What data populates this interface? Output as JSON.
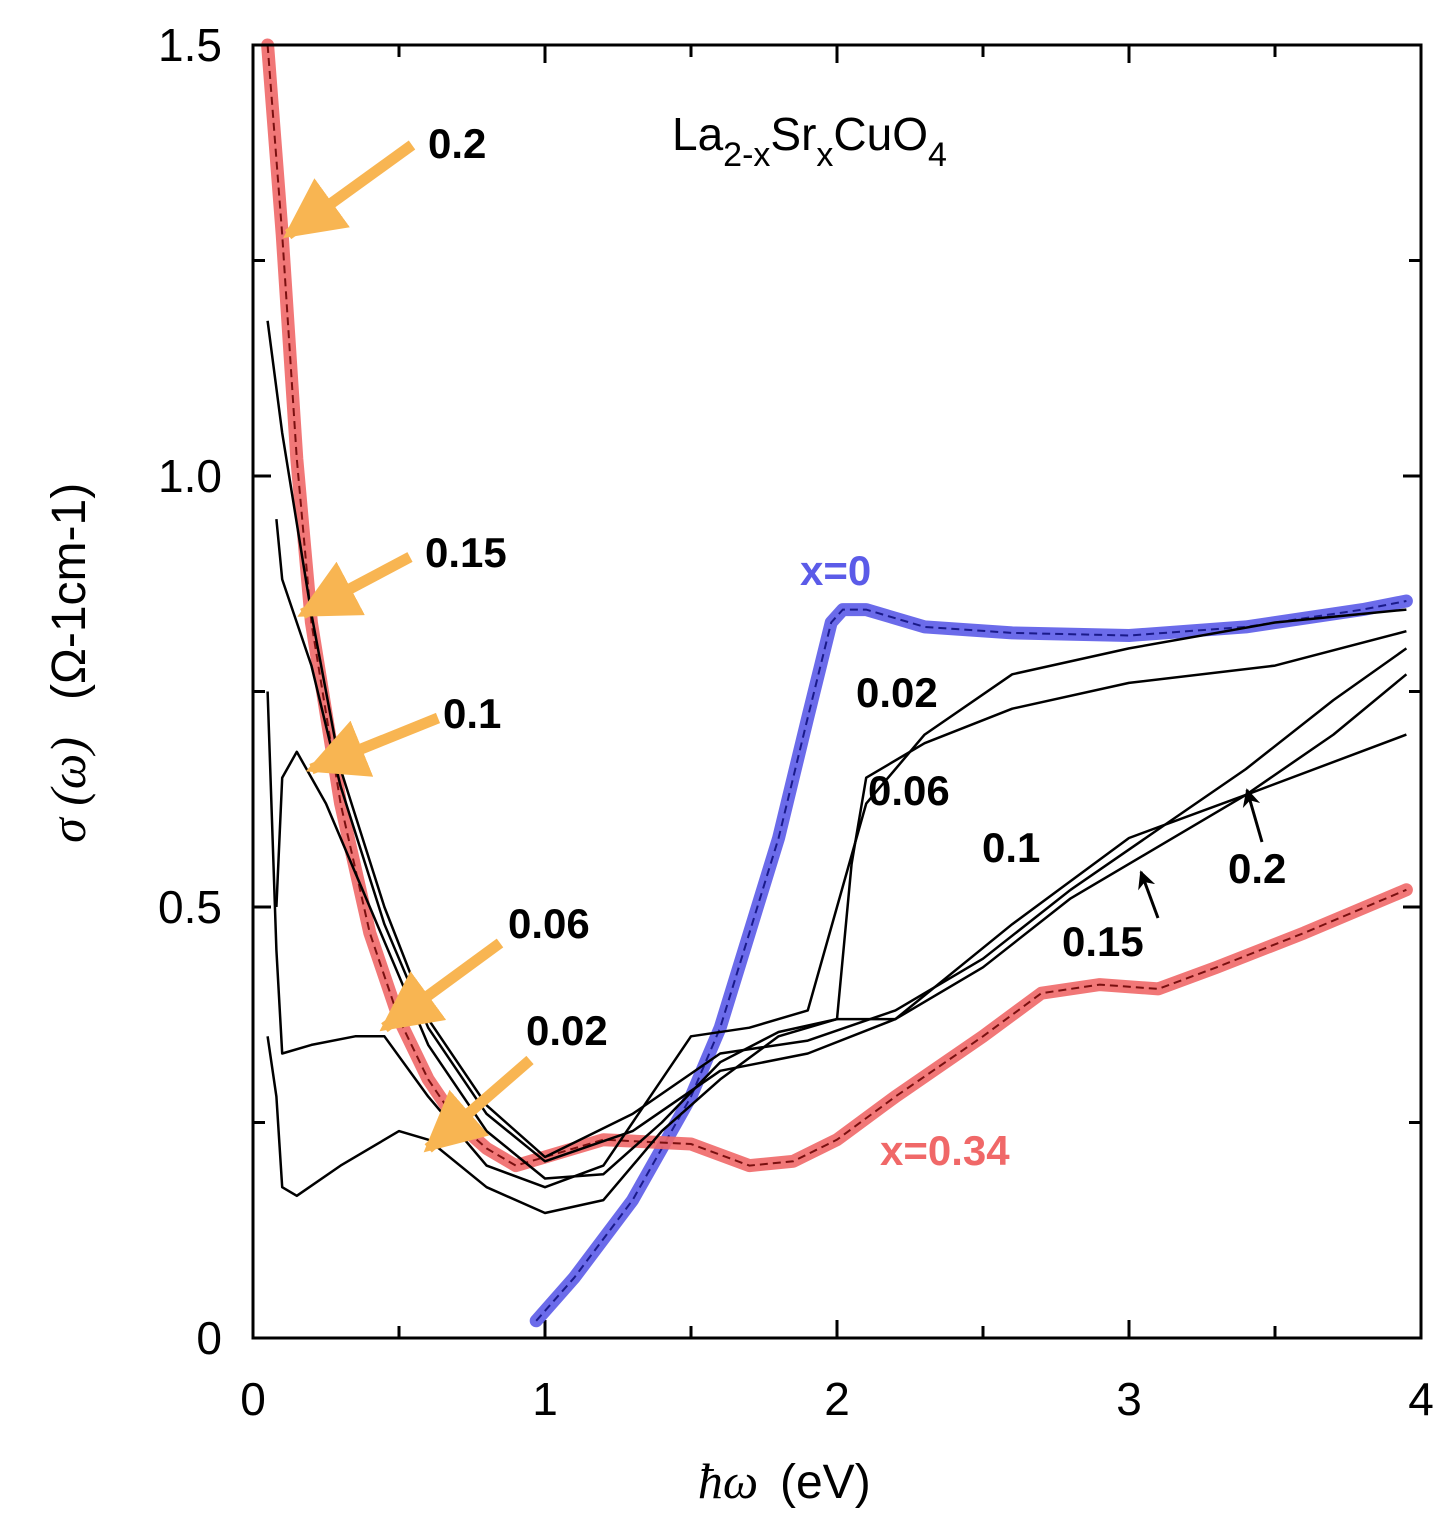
{
  "chart_data": {
    "type": "line",
    "title": "",
    "formula": {
      "base": "La",
      "sub1": "2-x",
      "mid": "Sr",
      "sub2": "x",
      "tail": "CuO",
      "sub3": "4"
    },
    "xlabel": {
      "symbol": "ħω",
      "unit": "(eV)"
    },
    "ylabel": {
      "symbol": "σ (ω)",
      "unit": "(Ω-1cm-1)"
    },
    "xlim": [
      0,
      4
    ],
    "ylim": [
      0,
      1.5
    ],
    "xticks": [
      0,
      1,
      2,
      3,
      4
    ],
    "xtick_labels": [
      "0",
      "1",
      "2",
      "3",
      "4"
    ],
    "yticks": [
      0,
      0.5,
      1.0,
      1.5
    ],
    "ytick_labels": [
      "0",
      "0.5",
      "1.0",
      "1.5"
    ],
    "colors": {
      "x0": "#5b5be8",
      "x034": "#f06868",
      "arrow": "#f8b552",
      "line": "#000000"
    },
    "series": [
      {
        "name": "x=0",
        "color": "#5b5be8",
        "points": [
          [
            0.97,
            0.02
          ],
          [
            1.1,
            0.07
          ],
          [
            1.3,
            0.16
          ],
          [
            1.5,
            0.28
          ],
          [
            1.6,
            0.36
          ],
          [
            1.7,
            0.47
          ],
          [
            1.8,
            0.58
          ],
          [
            1.9,
            0.72
          ],
          [
            1.98,
            0.83
          ],
          [
            2.02,
            0.845
          ],
          [
            2.1,
            0.845
          ],
          [
            2.3,
            0.825
          ],
          [
            2.6,
            0.818
          ],
          [
            3.0,
            0.815
          ],
          [
            3.4,
            0.825
          ],
          [
            3.8,
            0.845
          ],
          [
            3.95,
            0.855
          ]
        ]
      },
      {
        "name": "x=0.34",
        "color": "#f06868",
        "points": [
          [
            0.05,
            1.5
          ],
          [
            0.1,
            1.28
          ],
          [
            0.15,
            1.02
          ],
          [
            0.2,
            0.83
          ],
          [
            0.3,
            0.62
          ],
          [
            0.4,
            0.47
          ],
          [
            0.5,
            0.37
          ],
          [
            0.6,
            0.3
          ],
          [
            0.7,
            0.25
          ],
          [
            0.8,
            0.22
          ],
          [
            0.9,
            0.2
          ],
          [
            1.0,
            0.21
          ],
          [
            1.2,
            0.23
          ],
          [
            1.5,
            0.225
          ],
          [
            1.7,
            0.2
          ],
          [
            1.85,
            0.205
          ],
          [
            2.0,
            0.23
          ],
          [
            2.2,
            0.28
          ],
          [
            2.5,
            0.35
          ],
          [
            2.7,
            0.4
          ],
          [
            2.9,
            0.41
          ],
          [
            3.1,
            0.405
          ],
          [
            3.3,
            0.43
          ],
          [
            3.6,
            0.47
          ],
          [
            3.95,
            0.52
          ]
        ]
      },
      {
        "name": "0.02",
        "color": "#000000",
        "points": [
          [
            0.05,
            0.35
          ],
          [
            0.08,
            0.28
          ],
          [
            0.1,
            0.175
          ],
          [
            0.15,
            0.165
          ],
          [
            0.3,
            0.2
          ],
          [
            0.5,
            0.24
          ],
          [
            0.6,
            0.23
          ],
          [
            0.8,
            0.175
          ],
          [
            1.0,
            0.145
          ],
          [
            1.2,
            0.16
          ],
          [
            1.4,
            0.24
          ],
          [
            1.6,
            0.3
          ],
          [
            1.8,
            0.35
          ],
          [
            2.0,
            0.37
          ],
          [
            2.2,
            0.37
          ],
          [
            2.6,
            0.48
          ],
          [
            3.0,
            0.58
          ],
          [
            3.4,
            0.63
          ],
          [
            3.95,
            0.7
          ]
        ]
      },
      {
        "name": "0.06",
        "color": "#000000",
        "points": [
          [
            0.05,
            0.75
          ],
          [
            0.08,
            0.45
          ],
          [
            0.1,
            0.33
          ],
          [
            0.2,
            0.34
          ],
          [
            0.35,
            0.35
          ],
          [
            0.45,
            0.35
          ],
          [
            0.6,
            0.28
          ],
          [
            0.8,
            0.2
          ],
          [
            1.0,
            0.175
          ],
          [
            1.2,
            0.2
          ],
          [
            1.4,
            0.3
          ],
          [
            1.5,
            0.35
          ],
          [
            1.7,
            0.36
          ],
          [
            1.9,
            0.38
          ],
          [
            2.0,
            0.5
          ],
          [
            2.1,
            0.62
          ],
          [
            2.3,
            0.7
          ],
          [
            2.6,
            0.77
          ],
          [
            3.0,
            0.8
          ],
          [
            3.5,
            0.83
          ],
          [
            3.95,
            0.845
          ]
        ]
      },
      {
        "name": "0.1",
        "color": "#000000",
        "points": [
          [
            0.08,
            0.5
          ],
          [
            0.1,
            0.65
          ],
          [
            0.15,
            0.68
          ],
          [
            0.25,
            0.62
          ],
          [
            0.4,
            0.5
          ],
          [
            0.6,
            0.34
          ],
          [
            0.8,
            0.24
          ],
          [
            1.0,
            0.185
          ],
          [
            1.2,
            0.19
          ],
          [
            1.4,
            0.25
          ],
          [
            1.6,
            0.32
          ],
          [
            1.8,
            0.355
          ],
          [
            2.0,
            0.37
          ],
          [
            2.05,
            0.55
          ],
          [
            2.1,
            0.65
          ],
          [
            2.3,
            0.69
          ],
          [
            2.6,
            0.73
          ],
          [
            3.0,
            0.76
          ],
          [
            3.5,
            0.78
          ],
          [
            3.95,
            0.82
          ]
        ]
      },
      {
        "name": "0.15",
        "color": "#000000",
        "points": [
          [
            0.08,
            0.95
          ],
          [
            0.1,
            0.88
          ],
          [
            0.2,
            0.78
          ],
          [
            0.3,
            0.64
          ],
          [
            0.45,
            0.48
          ],
          [
            0.6,
            0.36
          ],
          [
            0.8,
            0.26
          ],
          [
            1.0,
            0.205
          ],
          [
            1.3,
            0.24
          ],
          [
            1.6,
            0.31
          ],
          [
            1.9,
            0.33
          ],
          [
            2.2,
            0.37
          ],
          [
            2.5,
            0.43
          ],
          [
            2.8,
            0.51
          ],
          [
            3.1,
            0.57
          ],
          [
            3.4,
            0.63
          ],
          [
            3.7,
            0.7
          ],
          [
            3.95,
            0.77
          ]
        ]
      },
      {
        "name": "0.2",
        "color": "#000000",
        "points": [
          [
            0.05,
            1.18
          ],
          [
            0.1,
            1.05
          ],
          [
            0.2,
            0.84
          ],
          [
            0.3,
            0.66
          ],
          [
            0.45,
            0.5
          ],
          [
            0.6,
            0.37
          ],
          [
            0.8,
            0.27
          ],
          [
            1.0,
            0.21
          ],
          [
            1.3,
            0.26
          ],
          [
            1.6,
            0.33
          ],
          [
            1.9,
            0.345
          ],
          [
            2.2,
            0.38
          ],
          [
            2.5,
            0.44
          ],
          [
            2.8,
            0.52
          ],
          [
            3.1,
            0.59
          ],
          [
            3.4,
            0.66
          ],
          [
            3.7,
            0.74
          ],
          [
            3.95,
            0.8
          ]
        ]
      }
    ],
    "annotations": {
      "left": [
        {
          "text": "0.2",
          "tx": 0.12,
          "ty": 1.28
        },
        {
          "text": "0.15",
          "tx": 0.17,
          "ty": 0.84
        },
        {
          "text": "0.1",
          "tx": 0.2,
          "ty": 0.66
        },
        {
          "text": "0.06",
          "tx": 0.45,
          "ty": 0.36
        },
        {
          "text": "0.02",
          "tx": 0.6,
          "ty": 0.22
        }
      ],
      "right": [
        {
          "text": "0.02"
        },
        {
          "text": "0.06"
        },
        {
          "text": "0.1"
        },
        {
          "text": "0.15"
        },
        {
          "text": "0.2"
        }
      ],
      "x0_label": "x=0",
      "x034_label": "x=0.34"
    }
  }
}
